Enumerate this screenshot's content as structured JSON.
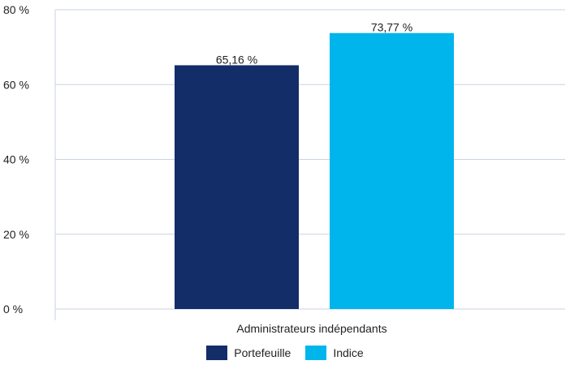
{
  "chart_data": {
    "type": "bar",
    "categories": [
      "Administrateurs indépendants"
    ],
    "series": [
      {
        "name": "Portefeuille",
        "values": [
          65.16
        ],
        "label": "65,16 %",
        "color": "#132d69"
      },
      {
        "name": "Indice",
        "values": [
          73.77
        ],
        "label": "73,77 %",
        "color": "#00b5ec"
      }
    ],
    "title": "",
    "xlabel": "",
    "ylabel": "",
    "ylim": [
      0,
      80
    ],
    "yticks": [
      0,
      20,
      40,
      60,
      80
    ],
    "ytick_labels": [
      "0 %",
      "20 %",
      "40 %",
      "60 %",
      "80 %"
    ],
    "grid": true,
    "legend_position": "bottom"
  }
}
